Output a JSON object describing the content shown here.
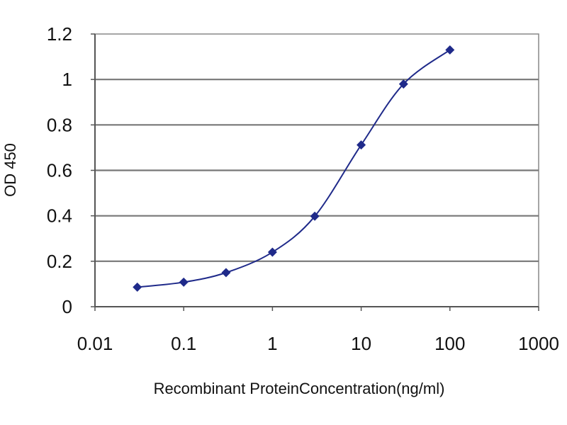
{
  "chart_data": {
    "type": "line",
    "xlabel": "Recombinant ProteinConcentration(ng/ml)",
    "ylabel": "OD 450",
    "x_scale": "log",
    "xlim": [
      0.01,
      1000
    ],
    "ylim": [
      0,
      1.2
    ],
    "x_ticks": [
      0.01,
      0.1,
      1,
      10,
      100,
      1000
    ],
    "x_tick_labels": [
      "0.01",
      "0.1",
      "1",
      "10",
      "100",
      "1000"
    ],
    "y_ticks": [
      0,
      0.2,
      0.4,
      0.6,
      0.8,
      1,
      1.2
    ],
    "y_tick_labels": [
      "0",
      "0.2",
      "0.4",
      "0.6",
      "0.8",
      "1",
      "1.2"
    ],
    "grid": "horizontal",
    "series": [
      {
        "x": [
          0.03,
          0.1,
          0.3,
          1,
          3,
          10,
          30,
          100
        ],
        "y": [
          0.086,
          0.108,
          0.15,
          0.24,
          0.398,
          0.712,
          0.98,
          1.13
        ],
        "color": "#1f2a8a"
      }
    ]
  }
}
